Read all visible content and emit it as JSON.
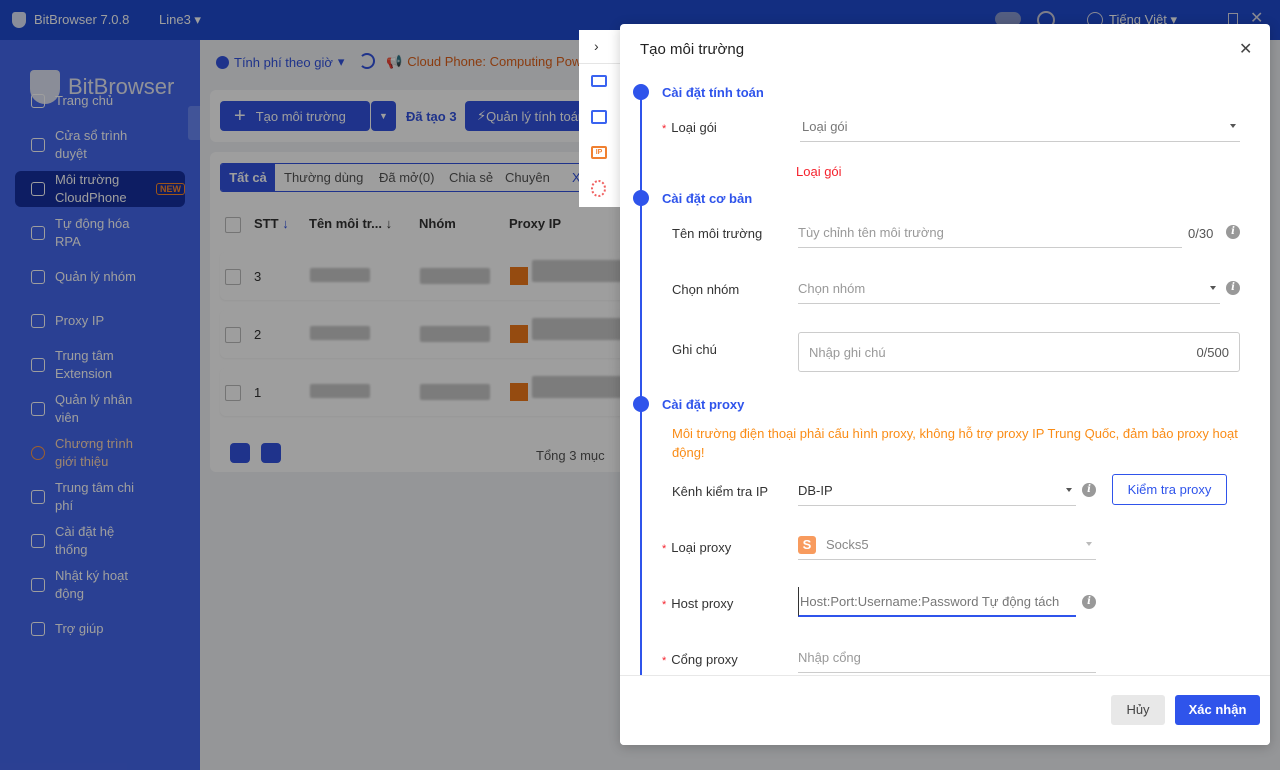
{
  "titlebar": {
    "app_name": "BitBrowser 7.0.8",
    "line": "Line3",
    "language": "Tiếng Việt"
  },
  "sidebar": {
    "logo": "BitBrowser",
    "items": [
      {
        "label": "Trang chủ",
        "icon": "home-icon"
      },
      {
        "label": "Cửa sổ trình duyệt",
        "icon": "grid-icon"
      },
      {
        "label": "Môi trường CloudPhone",
        "icon": "cloud-icon",
        "badge": "NEW",
        "active": true
      },
      {
        "label": "Tự động hóa RPA",
        "icon": "robot-icon"
      },
      {
        "label": "Quản lý nhóm",
        "icon": "layers-icon"
      },
      {
        "label": "Proxy IP",
        "icon": "location-icon"
      },
      {
        "label": "Trung tâm Extension",
        "icon": "cube-icon"
      },
      {
        "label": "Quản lý nhân viên",
        "icon": "users-icon"
      },
      {
        "label": "Chương trình giới thiệu",
        "icon": "referral-icon"
      },
      {
        "label": "Trung tâm chi phí",
        "icon": "shield-icon"
      },
      {
        "label": "Cài đặt hệ thống",
        "icon": "settings-icon"
      },
      {
        "label": "Nhật ký hoạt động",
        "icon": "log-icon"
      },
      {
        "label": "Trợ giúp",
        "icon": "help-icon"
      }
    ]
  },
  "toolbar": {
    "billing": "Tính phí theo giờ",
    "notice": "Cloud Phone: Computing Pow",
    "create": "Tạo môi trường",
    "created": "Đã tạo 3",
    "manage": "Quản lý tính toán"
  },
  "tabs": [
    "Tất cả",
    "Thường dùng",
    "Đã mở(0)",
    "Chia sẻ",
    "Chuyên",
    "X"
  ],
  "table": {
    "headers": [
      "STT",
      "Tên môi tr...",
      "Nhóm",
      "Proxy IP"
    ],
    "rows": [
      "3",
      "2",
      "1"
    ],
    "total": "Tổng 3 mục"
  },
  "modal": {
    "title": "Tạo môi trường",
    "sec_compute": "Cài đặt tính toán",
    "package_label": "Loại gói",
    "package_placeholder": "Loại gói",
    "package_error": "Loại gói",
    "sec_basic": "Cài đặt cơ bản",
    "name_label": "Tên môi trường",
    "name_placeholder": "Tùy chỉnh tên môi trường",
    "name_count": "0/30",
    "group_label": "Chọn nhóm",
    "group_placeholder": "Chọn nhóm",
    "note_label": "Ghi chú",
    "note_placeholder": "Nhập ghi chú",
    "note_count": "0/500",
    "sec_proxy": "Cài đặt proxy",
    "proxy_warning": "Môi trường điện thoại phải cấu hình proxy, không hỗ trợ proxy IP Trung Quốc, đảm bảo proxy hoạt động!",
    "check_channel_label": "Kênh kiểm tra IP",
    "check_channel_value": "DB-IP",
    "check_button": "Kiểm tra proxy",
    "proxy_type_label": "Loại proxy",
    "proxy_type_value": "Socks5",
    "proxy_type_badge": "S",
    "host_label": "Host proxy",
    "host_placeholder": "Host:Port:Username:Password Tự động tách",
    "port_label": "Cổng proxy",
    "port_placeholder": "Nhập cổng",
    "cancel": "Hủy",
    "confirm": "Xác nhận"
  },
  "colors": {
    "accent": "#2f54eb",
    "warning": "#fa8c16",
    "error": "#f5222d"
  }
}
